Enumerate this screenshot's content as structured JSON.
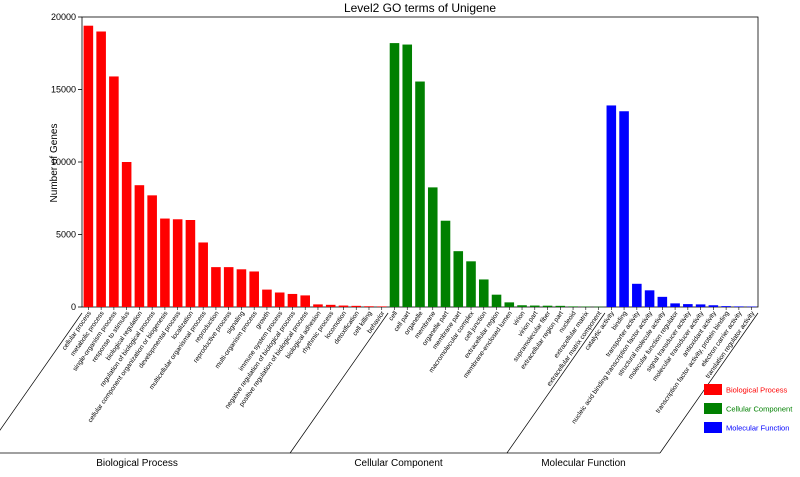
{
  "chart_data": {
    "type": "bar",
    "title": "Level2 GO terms of Unigene",
    "ylabel": "Number of Genes",
    "ylim": [
      0,
      20000
    ],
    "yticks": [
      0,
      5000,
      10000,
      15000,
      20000
    ],
    "grid": false,
    "legend_position": "bottom-right",
    "groups": [
      {
        "name": "Biological Process",
        "color": "#ff0000",
        "categories": [
          "cellular process",
          "metabolic process",
          "single-organism process",
          "response to stimulus",
          "biological regulation",
          "regulation of biological process",
          "cellular component organization or biogenesis",
          "developmental process",
          "localization",
          "multicellular organismal process",
          "reproduction",
          "reproductive process",
          "signaling",
          "multi-organism process",
          "growth",
          "immune system process",
          "negative regulation of biological process",
          "positive regulation of biological process",
          "biological adhesion",
          "rhythmic process",
          "locomotion",
          "detoxification",
          "cell killing",
          "behavior"
        ],
        "values": [
          19400,
          19000,
          15900,
          10000,
          8400,
          7700,
          6100,
          6050,
          6000,
          4450,
          2750,
          2750,
          2600,
          2450,
          1200,
          1000,
          900,
          800,
          180,
          150,
          100,
          80,
          50,
          40
        ]
      },
      {
        "name": "Cellular Component",
        "color": "#008000",
        "categories": [
          "cell",
          "cell part",
          "organelle",
          "membrane",
          "organelle part",
          "membrane part",
          "macromolecular complex",
          "cell junction",
          "extracellular region",
          "membrane-enclosed lumen",
          "virion",
          "virion part",
          "supramolecular fiber",
          "extracellular region part",
          "nucleoid",
          "extracellular matrix",
          "extracellular matrix component"
        ],
        "values": [
          18200,
          18100,
          15550,
          8250,
          5950,
          3850,
          3150,
          1900,
          850,
          320,
          120,
          100,
          90,
          80,
          40,
          30,
          20
        ]
      },
      {
        "name": "Molecular Function",
        "color": "#0000ff",
        "categories": [
          "catalytic activity",
          "binding",
          "transporter activity",
          "nucleic acid binding transcription factor activity",
          "structural molecule activity",
          "molecular function regulator",
          "signal transducer activity",
          "molecular transducer activity",
          "antioxidant activity",
          "transcription factor activity, protein binding",
          "electron carrier activity",
          "translation regulator activity"
        ],
        "values": [
          13900,
          13500,
          1600,
          1150,
          700,
          250,
          200,
          180,
          120,
          60,
          40,
          30
        ]
      }
    ]
  }
}
